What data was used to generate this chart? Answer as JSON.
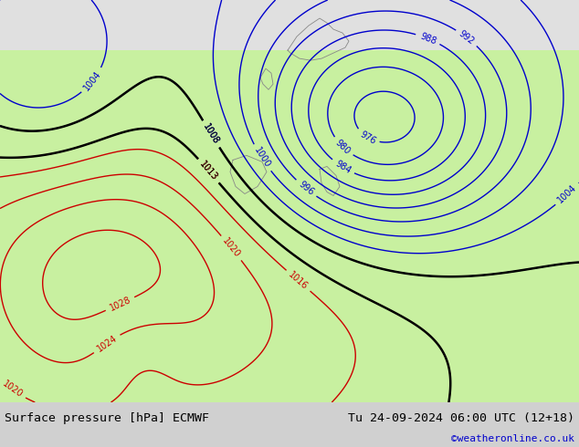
{
  "title_left": "Surface pressure [hPa] ECMWF",
  "title_right": "Tu 24-09-2024 06:00 UTC (12+18)",
  "credit": "©weatheronline.co.uk",
  "bg_color": "#d0d0d0",
  "land_color": "#c8f0a0",
  "sea_color": "#d0d0d0",
  "blue_contour_color": "#0000cc",
  "red_contour_color": "#cc0000",
  "black_contour_color": "#000000",
  "figsize": [
    6.34,
    4.9
  ],
  "dpi": 100,
  "bottom_bar_color": "#e0e0e0",
  "title_fontsize": 9.5,
  "credit_color": "#0000cc"
}
